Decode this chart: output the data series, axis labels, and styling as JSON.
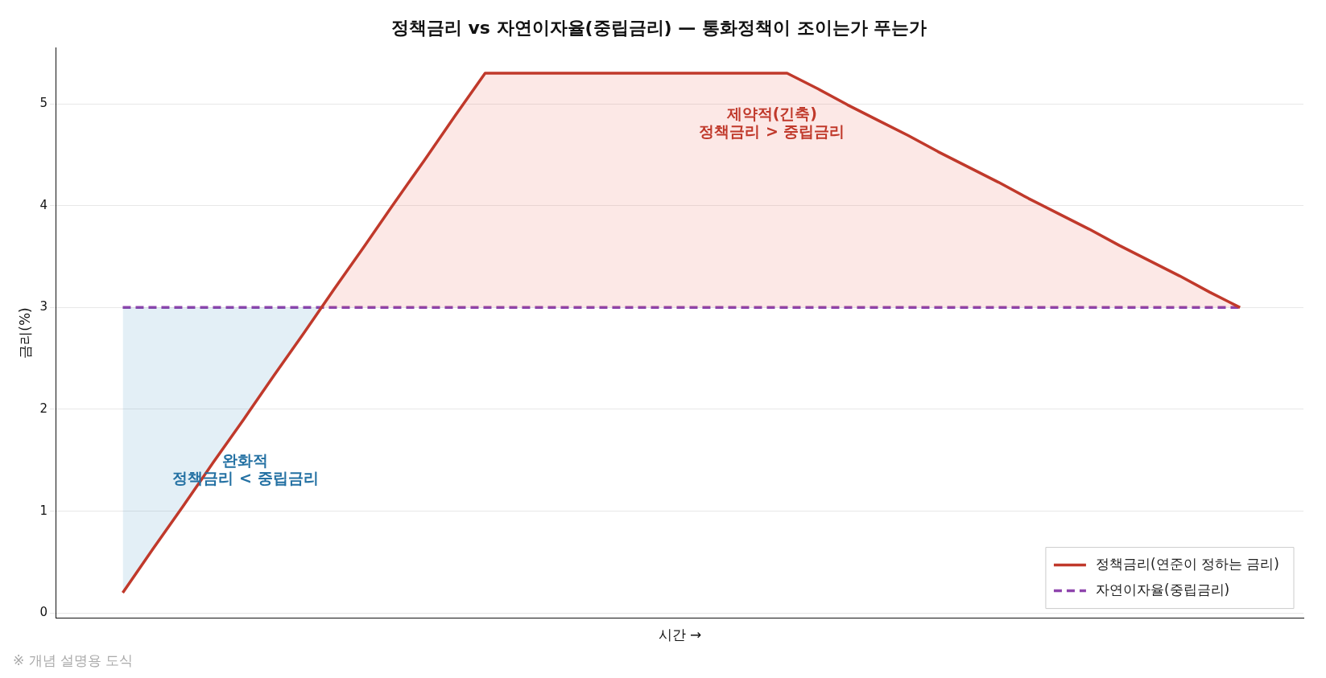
{
  "chart_data": {
    "type": "line",
    "title": "정책금리 vs 자연이자율(중립금리) — 통화정책이 조이는가 푸는가",
    "xlabel": "시간 →",
    "ylabel": "금리(%)",
    "categories": [
      null,
      null,
      null,
      null,
      null,
      null,
      null,
      null,
      null,
      null,
      null,
      null,
      null,
      null,
      null,
      null,
      null,
      null,
      null,
      null,
      null,
      null,
      null,
      null,
      null,
      null,
      null,
      null,
      null,
      null,
      null,
      null,
      null,
      null,
      null,
      null,
      null,
      null
    ],
    "series": [
      {
        "name": "정책금리(연준이 정하는 금리)",
        "color": "#c0392b",
        "line_style": "solid",
        "values": [
          0.2,
          0.63,
          1.05,
          1.48,
          1.9,
          2.33,
          2.75,
          3.18,
          3.6,
          4.03,
          4.45,
          4.88,
          5.3,
          5.3,
          5.3,
          5.3,
          5.3,
          5.3,
          5.3,
          5.3,
          5.3,
          5.3,
          5.3,
          5.15,
          4.99,
          4.84,
          4.69,
          4.53,
          4.38,
          4.23,
          4.07,
          3.92,
          3.77,
          3.61,
          3.46,
          3.31,
          3.15,
          3.0
        ]
      },
      {
        "name": "자연이자율(중립금리)",
        "color": "#8e44ad",
        "line_style": "dashed",
        "values": [
          3,
          3,
          3,
          3,
          3,
          3,
          3,
          3,
          3,
          3,
          3,
          3,
          3,
          3,
          3,
          3,
          3,
          3,
          3,
          3,
          3,
          3,
          3,
          3,
          3,
          3,
          3,
          3,
          3,
          3,
          3,
          3,
          3,
          3,
          3,
          3,
          3,
          3
        ]
      }
    ],
    "ylim": [
      -0.05,
      5.55
    ],
    "yticks": [
      0,
      1,
      2,
      3,
      4,
      5
    ],
    "grid": "y",
    "legend": "bottom right",
    "marker": "none",
    "tick_labels": "y",
    "annotations": [
      "제약적(긴축)\n정책금리 > 중립금리",
      "완화적\n정책금리 < 중립금리",
      "※ 개념 설명용 도식"
    ]
  }
}
